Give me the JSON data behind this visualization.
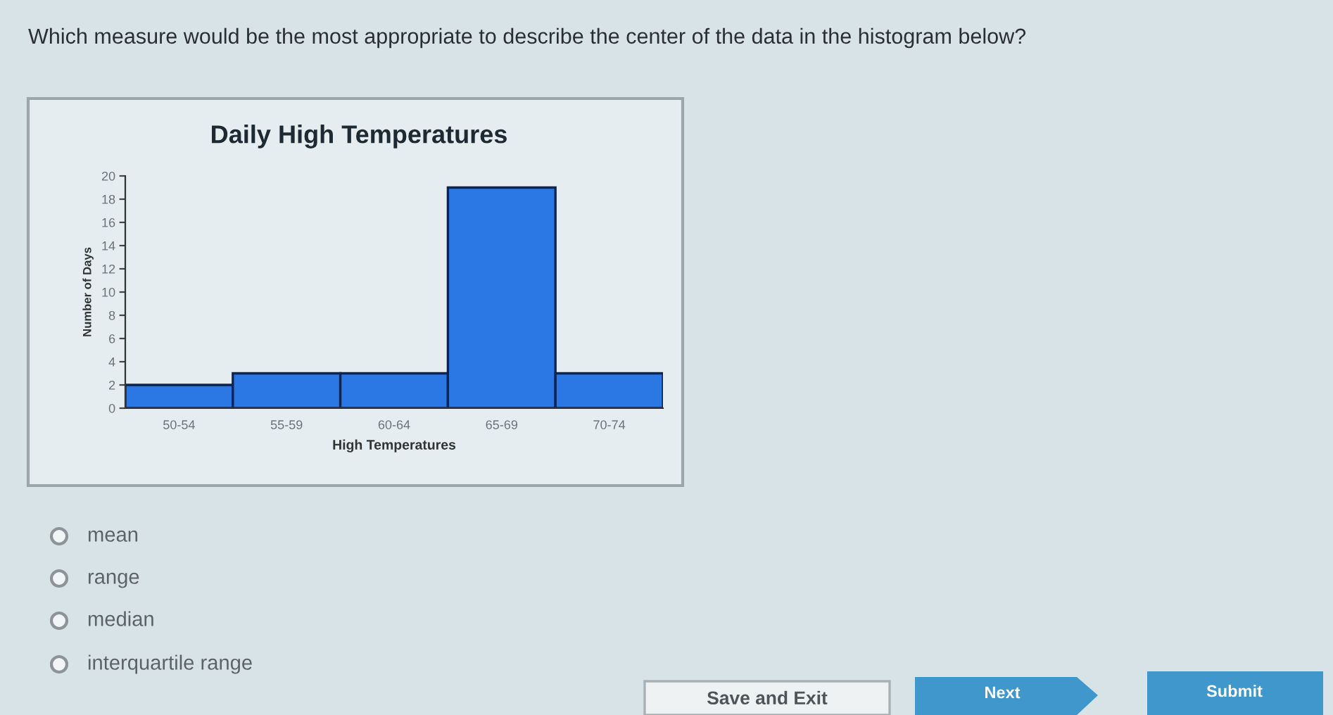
{
  "chart_data": {
    "type": "bar",
    "title": "Daily High Temperatures",
    "xlabel": "High Temperatures",
    "ylabel": "Number of Days",
    "categories": [
      "50-54",
      "55-59",
      "60-64",
      "65-69",
      "70-74"
    ],
    "values": [
      2,
      3,
      3,
      19,
      3
    ],
    "color": "#2b78e4",
    "ylim": [
      0,
      20
    ],
    "yticks": [
      0,
      2,
      4,
      6,
      8,
      10,
      12,
      14,
      16,
      18,
      20
    ],
    "annotations": [
      "Which measure would be the most appropriate to describe the center of the data in the histogram below?",
      "mean",
      "range",
      "median",
      "interquartile range",
      "Save and Exit",
      "Next",
      "Submit"
    ]
  }
}
